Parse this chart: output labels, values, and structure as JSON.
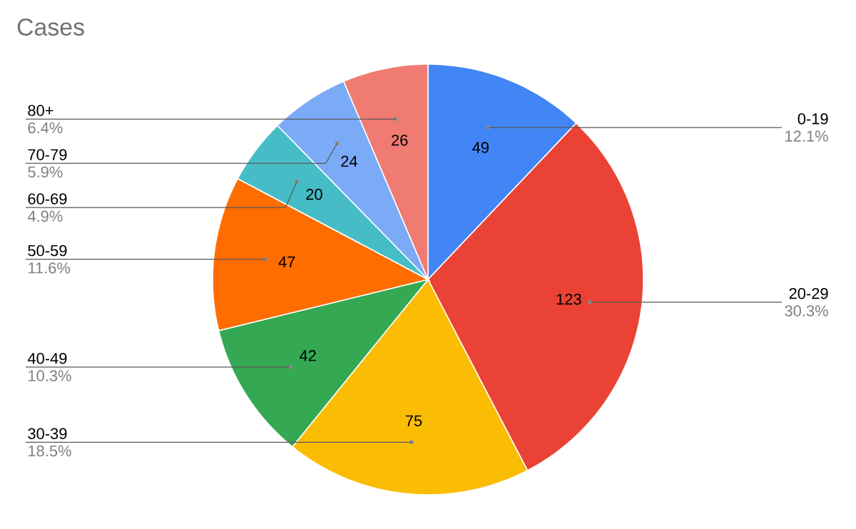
{
  "chart_data": {
    "type": "pie",
    "title": "Cases",
    "categories": [
      "0-19",
      "20-29",
      "30-39",
      "40-49",
      "50-59",
      "60-69",
      "70-79",
      "80+"
    ],
    "values": [
      49,
      123,
      75,
      42,
      47,
      20,
      24,
      26
    ],
    "colors": [
      "#4285f4",
      "#ea4335",
      "#fbbc04",
      "#34a853",
      "#ff6d01",
      "#46bdc6",
      "#7baaf7",
      "#f07b72"
    ],
    "value_labels": [
      "49",
      "123",
      "75",
      "42",
      "47",
      "20",
      "24",
      "26"
    ],
    "annotations": [
      "12.1%",
      "30.3%",
      "18.5%",
      "10.3%",
      "11.6%",
      "4.9%",
      "5.9%",
      "6.4%"
    ]
  }
}
